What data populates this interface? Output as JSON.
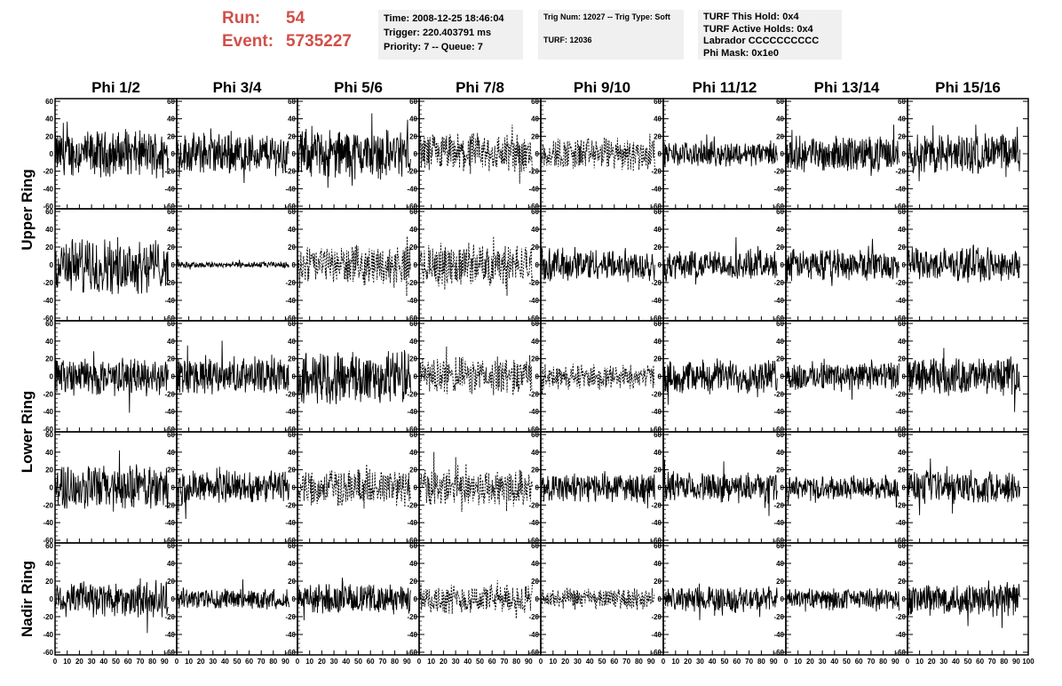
{
  "header": {
    "run_label": "Run:",
    "run_value": "54",
    "event_label": "Event:",
    "event_value": "5735227",
    "time": "Time: 2008-12-25 18:46:04",
    "trigger": "Trigger: 220.403791 ms",
    "priority": "Priority: 7 -- Queue: 7",
    "trig_num": "Trig Num: 12027 -- Trig Type: Soft",
    "turf": "TURF: 12036",
    "turf_this_hold": "TURF This Hold: 0x4",
    "turf_active_holds": "TURF Active Holds: 0x4",
    "labrador": "Labrador CCCCCCCCCC",
    "phi_mask": "Phi Mask: 0x1e0"
  },
  "colors": {
    "header_text": "#d0504a",
    "info_bg": "#f0f0f0",
    "trace": "#000000"
  },
  "chart_data": {
    "type": "line",
    "title": "",
    "columns": [
      "Phi 1/2",
      "Phi 3/4",
      "Phi 5/6",
      "Phi 7/8",
      "Phi 9/10",
      "Phi 11/12",
      "Phi 13/14",
      "Phi 15/16"
    ],
    "ring_labels": [
      {
        "label": "Upper Ring",
        "rows": [
          0,
          1
        ]
      },
      {
        "label": "Lower Ring",
        "rows": [
          2,
          3
        ]
      },
      {
        "label": "Nadir Ring",
        "rows": [
          4
        ]
      }
    ],
    "xlim": [
      0,
      100
    ],
    "ylim": [
      -60,
      60
    ],
    "x_ticks": [
      "0",
      "10",
      "20",
      "30",
      "40",
      "50",
      "60",
      "70",
      "80",
      "90",
      "100"
    ],
    "y_ticks": [
      "-60",
      "-40",
      "-20",
      "0",
      "20",
      "40",
      "60"
    ],
    "x_range_samples": [
      0,
      93
    ],
    "grid": false,
    "panels": [
      [
        {
          "amp": 22,
          "dashed": false
        },
        {
          "amp": 20,
          "dashed": false
        },
        {
          "amp": 24,
          "dashed": false
        },
        {
          "amp": 20,
          "dashed": true
        },
        {
          "amp": 16,
          "dashed": true
        },
        {
          "amp": 12,
          "dashed": false
        },
        {
          "amp": 17,
          "dashed": false
        },
        {
          "amp": 20,
          "dashed": false
        }
      ],
      [
        {
          "amp": 26,
          "dashed": false
        },
        {
          "amp": 3,
          "dashed": false
        },
        {
          "amp": 18,
          "dashed": true
        },
        {
          "amp": 20,
          "dashed": true
        },
        {
          "amp": 16,
          "dashed": false
        },
        {
          "amp": 14,
          "dashed": false
        },
        {
          "amp": 15,
          "dashed": false
        },
        {
          "amp": 16,
          "dashed": false
        }
      ],
      [
        {
          "amp": 18,
          "dashed": false
        },
        {
          "amp": 18,
          "dashed": false
        },
        {
          "amp": 26,
          "dashed": false
        },
        {
          "amp": 18,
          "dashed": true
        },
        {
          "amp": 12,
          "dashed": true
        },
        {
          "amp": 16,
          "dashed": false
        },
        {
          "amp": 14,
          "dashed": false
        },
        {
          "amp": 18,
          "dashed": false
        }
      ],
      [
        {
          "amp": 22,
          "dashed": false
        },
        {
          "amp": 16,
          "dashed": false
        },
        {
          "amp": 18,
          "dashed": true
        },
        {
          "amp": 18,
          "dashed": true
        },
        {
          "amp": 14,
          "dashed": false
        },
        {
          "amp": 14,
          "dashed": false
        },
        {
          "amp": 11,
          "dashed": false
        },
        {
          "amp": 16,
          "dashed": false
        }
      ],
      [
        {
          "amp": 18,
          "dashed": false
        },
        {
          "amp": 10,
          "dashed": false
        },
        {
          "amp": 14,
          "dashed": false
        },
        {
          "amp": 14,
          "dashed": true
        },
        {
          "amp": 10,
          "dashed": true
        },
        {
          "amp": 12,
          "dashed": false
        },
        {
          "amp": 10,
          "dashed": false
        },
        {
          "amp": 16,
          "dashed": false
        }
      ]
    ]
  }
}
